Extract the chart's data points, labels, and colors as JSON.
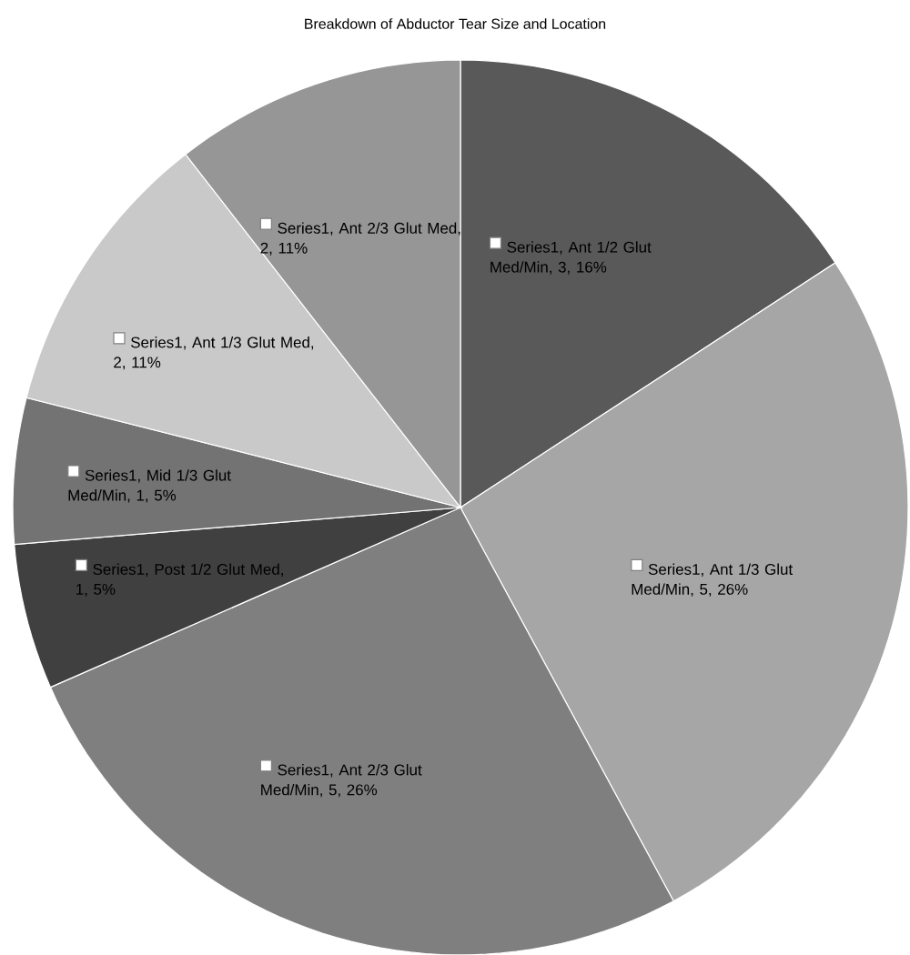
{
  "chart_data": {
    "type": "pie",
    "title": "Breakdown of Abductor Tear Size and Location",
    "values": [
      3,
      5,
      5,
      1,
      1,
      2,
      2
    ],
    "value_labels": [
      "Series1, Ant 1/2 Glut Med/Min, 3, 16%",
      "Series1, Ant 1/3 Glut Med/Min, 5, 26%",
      "Series1, Ant 2/3 Glut Med/Min, 5, 26%",
      "Series1, Post 1/2 Glut Med, 1, 5%",
      "Series1, Mid 1/3 Glut Med/Min, 1, 5%",
      "Series1, Ant 1/3 Glut Med, 2, 11%",
      "Series1, Ant 2/3 Glut Med, 2, 11%"
    ],
    "colors": [
      "#595959",
      "#a6a6a6",
      "#7f7f7f",
      "#404040",
      "#737373",
      "#c9c9c9",
      "#969696"
    ]
  }
}
